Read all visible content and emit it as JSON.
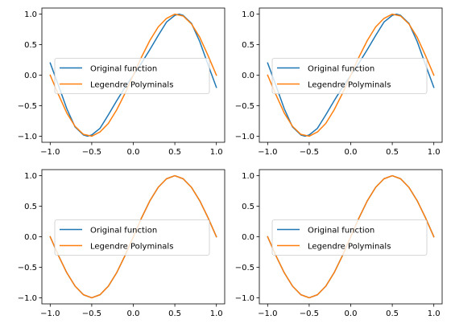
{
  "chart_data": [
    {
      "type": "line",
      "title": "",
      "xlabel": "",
      "ylabel": "",
      "xlim": [
        -1.1,
        1.1
      ],
      "ylim": [
        -1.1,
        1.1
      ],
      "xticks": [
        -1.0,
        -0.5,
        0.0,
        0.5,
        1.0
      ],
      "yticks": [
        -1.0,
        -0.5,
        0.0,
        0.5,
        1.0
      ],
      "xtick_labels": [
        "−1.0",
        "−0.5",
        "0.0",
        "0.5",
        "1.0"
      ],
      "ytick_labels": [
        "−1.0",
        "−0.5",
        "0.0",
        "0.5",
        "1.0"
      ],
      "legend_position": "center-left",
      "grid": false,
      "series": [
        {
          "name": "Original function",
          "color": "#1f77b4",
          "x": [
            -1.0,
            -0.9,
            -0.8,
            -0.7,
            -0.6,
            -0.55,
            -0.5,
            -0.4,
            -0.3,
            -0.2,
            -0.1,
            0.0,
            0.1,
            0.2,
            0.3,
            0.4,
            0.5,
            0.55,
            0.6,
            0.7,
            0.8,
            0.9,
            1.0
          ],
          "y": [
            0.2,
            -0.17,
            -0.55,
            -0.85,
            -0.98,
            -1.0,
            -0.98,
            -0.87,
            -0.65,
            -0.42,
            -0.2,
            0.0,
            0.2,
            0.42,
            0.65,
            0.87,
            0.98,
            1.0,
            0.98,
            0.85,
            0.55,
            0.17,
            -0.2
          ]
        },
        {
          "name": "Legendre Polyminals",
          "color": "#ff7f0e",
          "x": [
            -1.0,
            -0.9,
            -0.8,
            -0.7,
            -0.6,
            -0.5,
            -0.4,
            -0.3,
            -0.2,
            -0.1,
            0.0,
            0.1,
            0.2,
            0.3,
            0.4,
            0.5,
            0.6,
            0.7,
            0.8,
            0.9,
            1.0
          ],
          "y": [
            0.0,
            -0.32,
            -0.62,
            -0.84,
            -0.97,
            -1.0,
            -0.93,
            -0.79,
            -0.57,
            -0.3,
            0.0,
            0.3,
            0.57,
            0.79,
            0.93,
            1.0,
            0.97,
            0.84,
            0.62,
            0.32,
            0.0
          ]
        }
      ]
    },
    {
      "type": "line",
      "title": "",
      "xlabel": "",
      "ylabel": "",
      "xlim": [
        -1.1,
        1.1
      ],
      "ylim": [
        -1.1,
        1.1
      ],
      "xticks": [
        -1.0,
        -0.5,
        0.0,
        0.5,
        1.0
      ],
      "yticks": [
        -1.0,
        -0.5,
        0.0,
        0.5,
        1.0
      ],
      "xtick_labels": [
        "−1.0",
        "−0.5",
        "0.0",
        "0.5",
        "1.0"
      ],
      "ytick_labels": [
        "−1.0",
        "−0.5",
        "0.0",
        "0.5",
        "1.0"
      ],
      "legend_position": "center-left",
      "grid": false,
      "series": [
        {
          "name": "Original function",
          "color": "#1f77b4",
          "x": [
            -1.0,
            -0.9,
            -0.8,
            -0.7,
            -0.6,
            -0.55,
            -0.5,
            -0.4,
            -0.3,
            -0.2,
            -0.1,
            0.0,
            0.1,
            0.2,
            0.3,
            0.4,
            0.5,
            0.55,
            0.6,
            0.7,
            0.8,
            0.9,
            1.0
          ],
          "y": [
            0.2,
            -0.17,
            -0.55,
            -0.85,
            -0.98,
            -1.0,
            -0.98,
            -0.87,
            -0.65,
            -0.42,
            -0.2,
            0.0,
            0.2,
            0.42,
            0.65,
            0.87,
            0.98,
            1.0,
            0.98,
            0.85,
            0.55,
            0.17,
            -0.2
          ]
        },
        {
          "name": "Legendre Polyminals",
          "color": "#ff7f0e",
          "x": [
            -1.0,
            -0.9,
            -0.8,
            -0.7,
            -0.6,
            -0.5,
            -0.4,
            -0.3,
            -0.2,
            -0.1,
            0.0,
            0.1,
            0.2,
            0.3,
            0.4,
            0.5,
            0.6,
            0.7,
            0.8,
            0.9,
            1.0
          ],
          "y": [
            0.0,
            -0.32,
            -0.62,
            -0.84,
            -0.97,
            -1.0,
            -0.93,
            -0.79,
            -0.57,
            -0.3,
            0.0,
            0.3,
            0.57,
            0.79,
            0.93,
            1.0,
            0.97,
            0.84,
            0.62,
            0.32,
            0.0
          ]
        }
      ]
    },
    {
      "type": "line",
      "title": "",
      "xlabel": "",
      "ylabel": "",
      "xlim": [
        -1.1,
        1.1
      ],
      "ylim": [
        -1.1,
        1.1
      ],
      "xticks": [
        -1.0,
        -0.5,
        0.0,
        0.5,
        1.0
      ],
      "yticks": [
        -1.0,
        -0.5,
        0.0,
        0.5,
        1.0
      ],
      "xtick_labels": [
        "−1.0",
        "−0.5",
        "0.0",
        "0.5",
        "1.0"
      ],
      "ytick_labels": [
        "−1.0",
        "−0.5",
        "0.0",
        "0.5",
        "1.0"
      ],
      "legend_position": "center-left",
      "grid": false,
      "series": [
        {
          "name": "Original function",
          "color": "#1f77b4",
          "x": [
            -1.0,
            -0.9,
            -0.8,
            -0.7,
            -0.6,
            -0.5,
            -0.4,
            -0.3,
            -0.2,
            -0.1,
            0.0,
            0.1,
            0.2,
            0.3,
            0.4,
            0.5,
            0.6,
            0.7,
            0.8,
            0.9,
            1.0
          ],
          "y": [
            0.0,
            -0.31,
            -0.59,
            -0.81,
            -0.95,
            -1.0,
            -0.95,
            -0.81,
            -0.59,
            -0.31,
            0.0,
            0.31,
            0.59,
            0.81,
            0.95,
            1.0,
            0.95,
            0.81,
            0.59,
            0.31,
            0.0
          ]
        },
        {
          "name": "Legendre Polyminals",
          "color": "#ff7f0e",
          "x": [
            -1.0,
            -0.9,
            -0.8,
            -0.7,
            -0.6,
            -0.5,
            -0.4,
            -0.3,
            -0.2,
            -0.1,
            0.0,
            0.1,
            0.2,
            0.3,
            0.4,
            0.5,
            0.6,
            0.7,
            0.8,
            0.9,
            1.0
          ],
          "y": [
            0.0,
            -0.31,
            -0.59,
            -0.81,
            -0.95,
            -1.0,
            -0.95,
            -0.81,
            -0.59,
            -0.31,
            0.0,
            0.31,
            0.59,
            0.81,
            0.95,
            1.0,
            0.95,
            0.81,
            0.59,
            0.31,
            0.0
          ]
        }
      ]
    },
    {
      "type": "line",
      "title": "",
      "xlabel": "",
      "ylabel": "",
      "xlim": [
        -1.1,
        1.1
      ],
      "ylim": [
        -1.1,
        1.1
      ],
      "xticks": [
        -1.0,
        -0.5,
        0.0,
        0.5,
        1.0
      ],
      "yticks": [
        -1.0,
        -0.5,
        0.0,
        0.5,
        1.0
      ],
      "xtick_labels": [
        "−1.0",
        "−0.5",
        "0.0",
        "0.5",
        "1.0"
      ],
      "ytick_labels": [
        "−1.0",
        "−0.5",
        "0.0",
        "0.5",
        "1.0"
      ],
      "legend_position": "center-left",
      "grid": false,
      "series": [
        {
          "name": "Original function",
          "color": "#1f77b4",
          "x": [
            -1.0,
            -0.9,
            -0.8,
            -0.7,
            -0.6,
            -0.5,
            -0.4,
            -0.3,
            -0.2,
            -0.1,
            0.0,
            0.1,
            0.2,
            0.3,
            0.4,
            0.5,
            0.6,
            0.7,
            0.8,
            0.9,
            1.0
          ],
          "y": [
            0.0,
            -0.31,
            -0.59,
            -0.81,
            -0.95,
            -1.0,
            -0.95,
            -0.81,
            -0.59,
            -0.31,
            0.0,
            0.31,
            0.59,
            0.81,
            0.95,
            1.0,
            0.95,
            0.81,
            0.59,
            0.31,
            0.0
          ]
        },
        {
          "name": "Legendre Polyminals",
          "color": "#ff7f0e",
          "x": [
            -1.0,
            -0.9,
            -0.8,
            -0.7,
            -0.6,
            -0.5,
            -0.4,
            -0.3,
            -0.2,
            -0.1,
            0.0,
            0.1,
            0.2,
            0.3,
            0.4,
            0.5,
            0.6,
            0.7,
            0.8,
            0.9,
            1.0
          ],
          "y": [
            0.0,
            -0.31,
            -0.59,
            -0.81,
            -0.95,
            -1.0,
            -0.95,
            -0.81,
            -0.59,
            -0.31,
            0.0,
            0.31,
            0.59,
            0.81,
            0.95,
            1.0,
            0.95,
            0.81,
            0.59,
            0.31,
            0.0
          ]
        }
      ]
    }
  ]
}
